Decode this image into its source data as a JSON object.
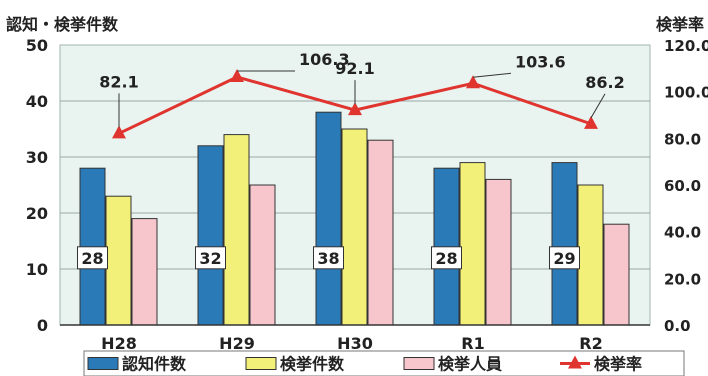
{
  "chart_data": {
    "type": "bar",
    "y_title_left": "認知・検挙件数",
    "y_title_right": "検挙率",
    "categories": [
      "H28",
      "H29",
      "H30",
      "R1",
      "R2"
    ],
    "ylim": [
      0,
      50
    ],
    "yticks": [
      "0",
      "10",
      "20",
      "30",
      "40",
      "50"
    ],
    "y2lim": [
      0,
      120
    ],
    "y2ticks": [
      "0.0",
      "20.0",
      "40.0",
      "60.0",
      "80.0",
      "100.0",
      "120.0"
    ],
    "grid": true,
    "legend_position": "bottom",
    "series": [
      {
        "name": "認知件数",
        "kind": "bar",
        "axis": "left",
        "color": "#2a7ab8",
        "values": [
          28,
          32,
          38,
          28,
          29
        ]
      },
      {
        "name": "検挙件数",
        "kind": "bar",
        "axis": "left",
        "color": "#f3f07a",
        "values": [
          23,
          34,
          35,
          29,
          25
        ]
      },
      {
        "name": "検挙人員",
        "kind": "bar",
        "axis": "left",
        "color": "#f7c6cd",
        "values": [
          19,
          25,
          33,
          26,
          18
        ]
      },
      {
        "name": "検挙率",
        "kind": "line",
        "axis": "right",
        "color": "#e0342f",
        "values": [
          82.1,
          106.3,
          92.1,
          103.6,
          86.2
        ]
      }
    ],
    "bar_value_labels": [
      "28",
      "32",
      "38",
      "28",
      "29"
    ],
    "line_value_labels": [
      "82.1",
      "106.3",
      "92.1",
      "103.6",
      "86.2"
    ]
  }
}
